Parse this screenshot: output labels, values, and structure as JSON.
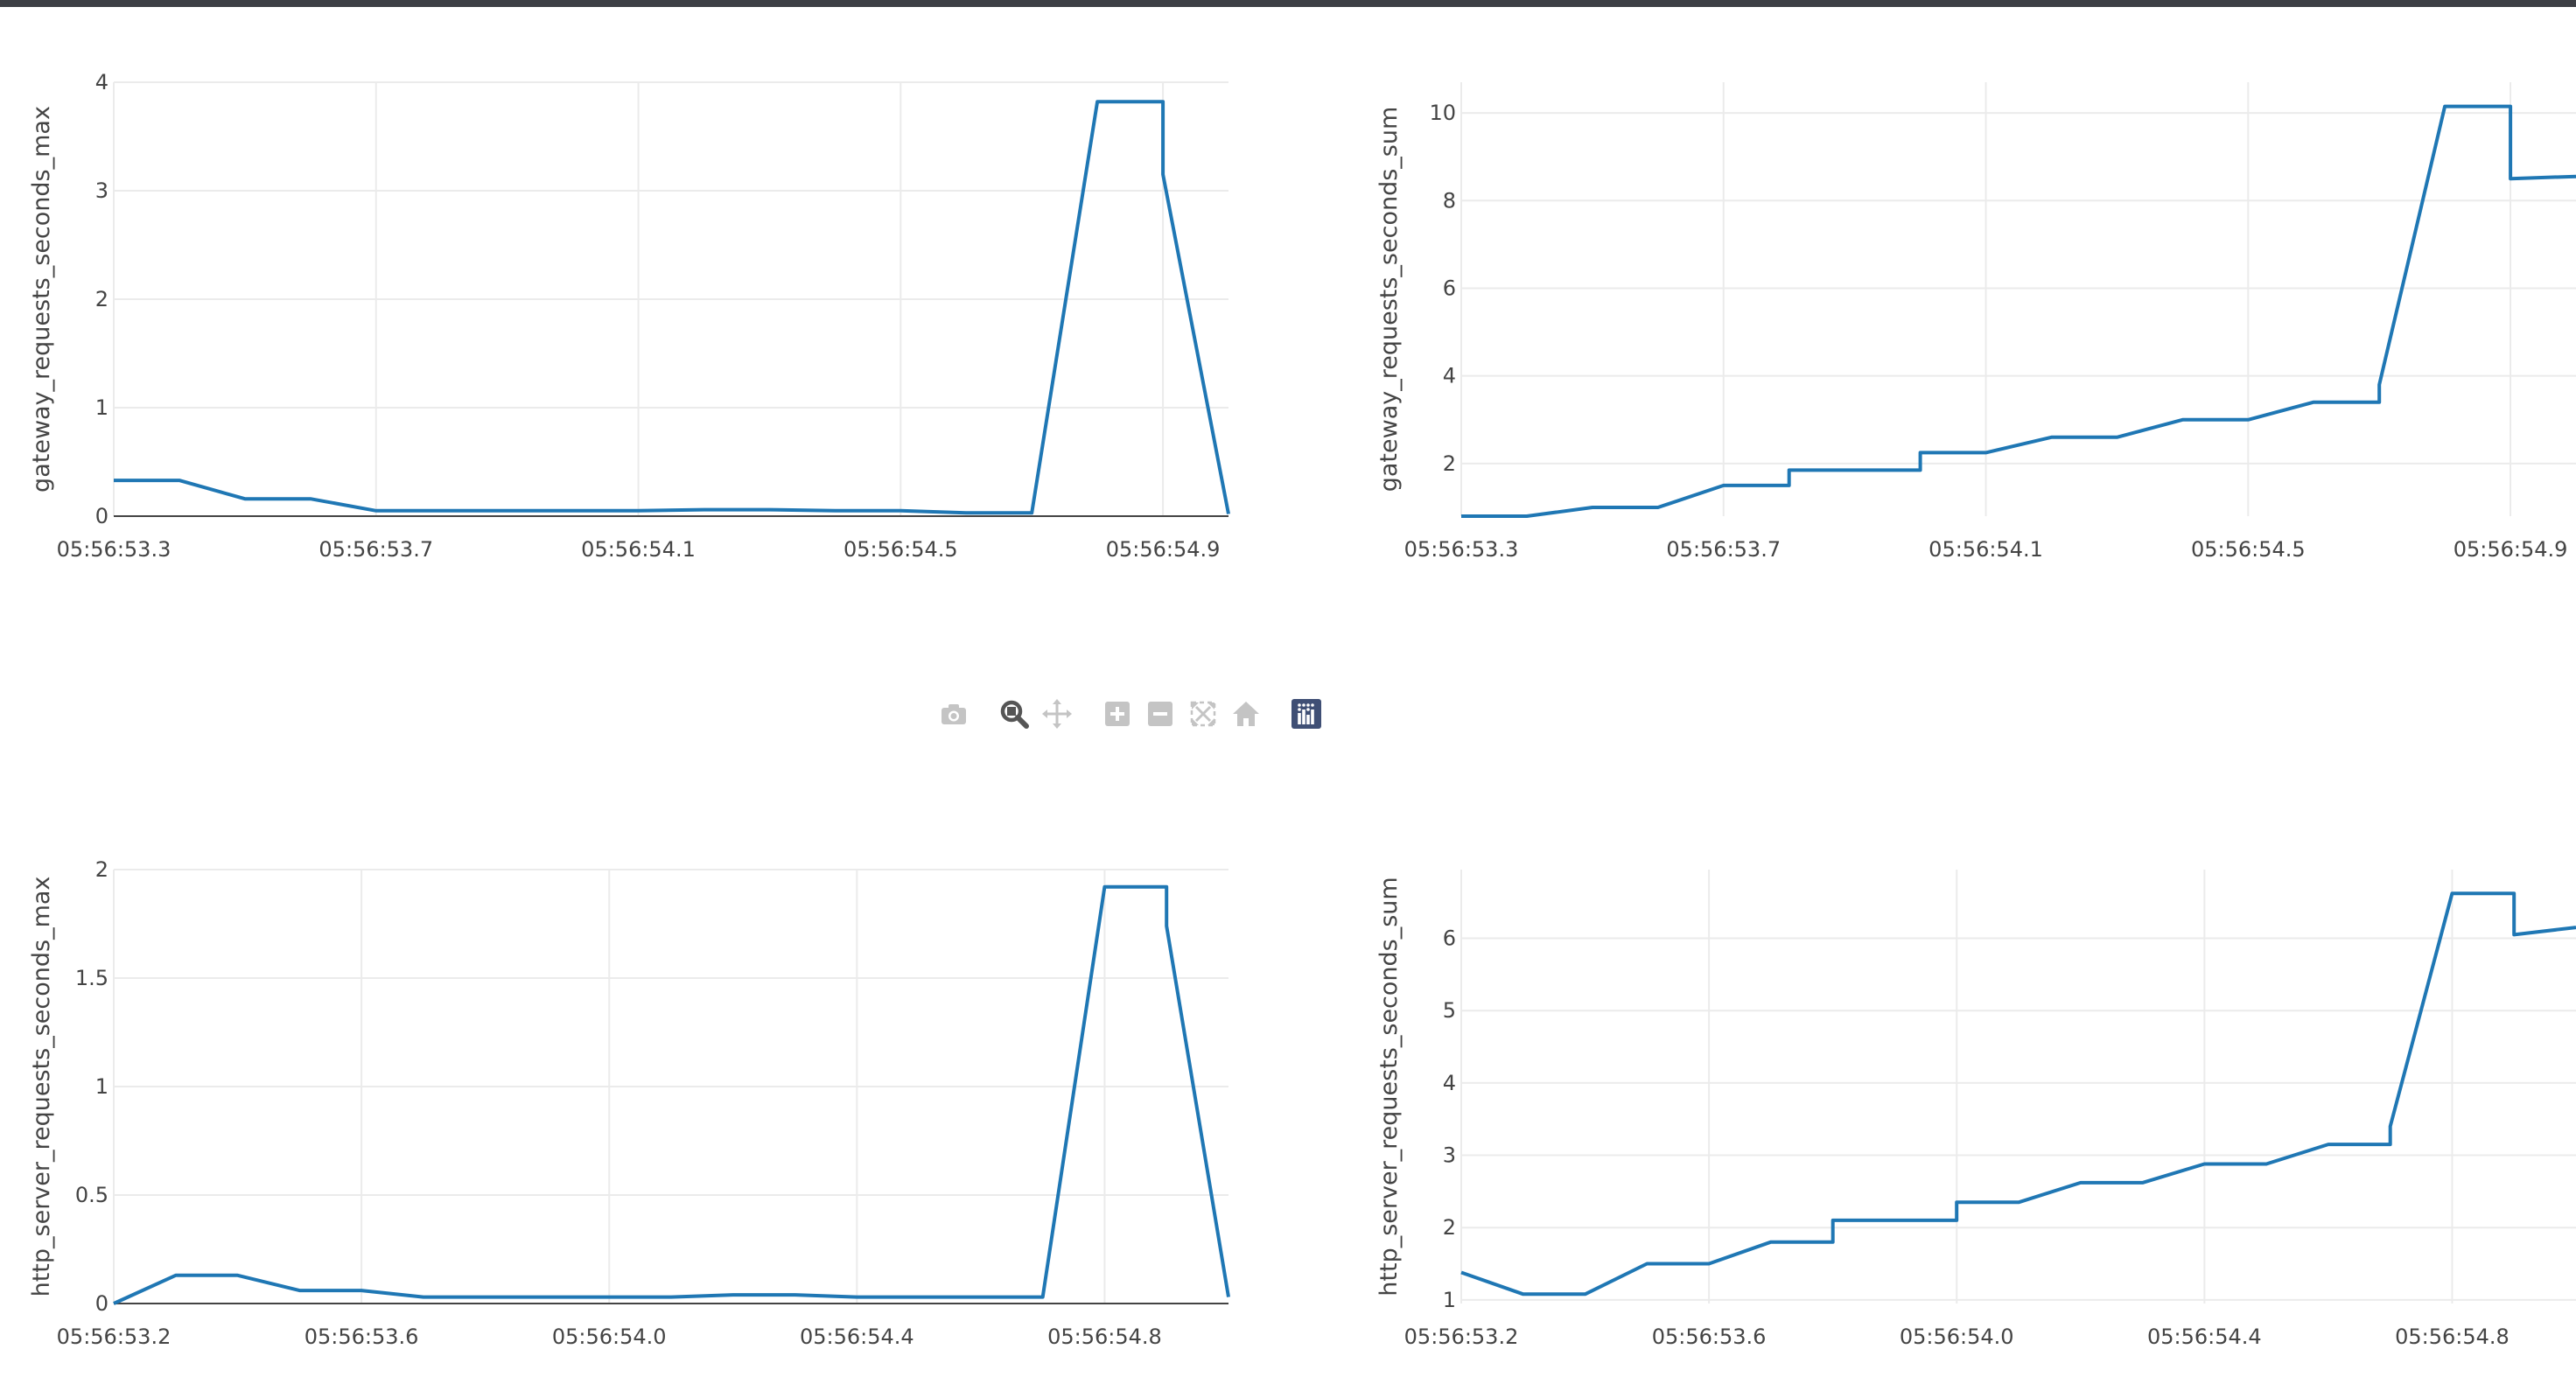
{
  "modebar": {
    "buttons": [
      {
        "name": "camera-icon",
        "title": "Download plot as a png"
      },
      {
        "name": "zoom-icon",
        "title": "Zoom",
        "active": true
      },
      {
        "name": "pan-icon",
        "title": "Pan"
      },
      {
        "name": "zoom-in-icon",
        "title": "Zoom in"
      },
      {
        "name": "zoom-out-icon",
        "title": "Zoom out"
      },
      {
        "name": "autoscale-icon",
        "title": "Autoscale"
      },
      {
        "name": "reset-axes-icon",
        "title": "Reset axes"
      },
      {
        "name": "plotly-logo-icon",
        "title": "Produced with Plotly"
      }
    ]
  },
  "colors": {
    "trace": "#1f77b4",
    "grid": "#ebebeb",
    "text": "#444444",
    "modebar_icon": "#c4c4c4",
    "modebar_active": "#555555",
    "logo_bg": "#3f4f75"
  },
  "chart_data": [
    {
      "type": "line",
      "ylabel": "gateway_requests_seconds_max",
      "xlabel": "",
      "title": "",
      "xticks": [
        "05:56:53.3",
        "05:56:53.7",
        "05:56:54.1",
        "05:56:54.5",
        "05:56:54.9"
      ],
      "xtick_values": [
        53.3,
        53.7,
        54.1,
        54.5,
        54.9
      ],
      "xlim": [
        53.3,
        55.0
      ],
      "yticks": [
        "0",
        "1",
        "2",
        "3",
        "4"
      ],
      "ytick_values": [
        0,
        1,
        2,
        3,
        4
      ],
      "ylim": [
        0,
        4
      ],
      "grid": true,
      "x": [
        53.3,
        53.4,
        53.5,
        53.6,
        53.7,
        53.8,
        54.0,
        54.1,
        54.2,
        54.3,
        54.4,
        54.5,
        54.6,
        54.7,
        54.8,
        54.9,
        54.9,
        55.0
      ],
      "y": [
        0.33,
        0.33,
        0.16,
        0.16,
        0.05,
        0.05,
        0.05,
        0.05,
        0.06,
        0.06,
        0.05,
        0.05,
        0.03,
        0.03,
        3.82,
        3.82,
        3.15,
        0.02
      ]
    },
    {
      "type": "line",
      "ylabel": "gateway_requests_seconds_sum",
      "xlabel": "",
      "title": "",
      "xticks": [
        "05:56:53.3",
        "05:56:53.7",
        "05:56:54.1",
        "05:56:54.5",
        "05:56:54.9"
      ],
      "xtick_values": [
        53.3,
        53.7,
        54.1,
        54.5,
        54.9
      ],
      "xlim": [
        53.3,
        55.0
      ],
      "yticks": [
        "2",
        "4",
        "6",
        "8",
        "10"
      ],
      "ytick_values": [
        2,
        4,
        6,
        8,
        10
      ],
      "ylim": [
        0.8,
        10.7
      ],
      "grid": true,
      "x": [
        53.3,
        53.4,
        53.5,
        53.6,
        53.7,
        53.8,
        53.8,
        54.0,
        54.0,
        54.1,
        54.2,
        54.3,
        54.4,
        54.5,
        54.6,
        54.7,
        54.7,
        54.8,
        54.9,
        54.9,
        55.0
      ],
      "y": [
        0.8,
        0.8,
        1.0,
        1.0,
        1.5,
        1.5,
        1.85,
        1.85,
        2.25,
        2.25,
        2.6,
        2.6,
        3.0,
        3.0,
        3.4,
        3.4,
        3.8,
        10.15,
        10.15,
        8.5,
        8.55
      ]
    },
    {
      "type": "line",
      "ylabel": "http_server_requests_seconds_max",
      "xlabel": "",
      "title": "",
      "xticks": [
        "05:56:53.2",
        "05:56:53.6",
        "05:56:54.0",
        "05:56:54.4",
        "05:56:54.8"
      ],
      "xtick_values": [
        53.2,
        53.6,
        54.0,
        54.4,
        54.8
      ],
      "xlim": [
        53.2,
        55.0
      ],
      "yticks": [
        "0",
        "0.5",
        "1",
        "1.5",
        "2"
      ],
      "ytick_values": [
        0,
        0.5,
        1,
        1.5,
        2
      ],
      "ylim": [
        0,
        2
      ],
      "grid": true,
      "x": [
        53.2,
        53.3,
        53.4,
        53.5,
        53.6,
        53.7,
        53.8,
        54.0,
        54.1,
        54.2,
        54.3,
        54.4,
        54.5,
        54.6,
        54.7,
        54.8,
        54.9,
        54.9,
        55.0
      ],
      "y": [
        0.0,
        0.13,
        0.13,
        0.06,
        0.06,
        0.03,
        0.03,
        0.03,
        0.03,
        0.04,
        0.04,
        0.03,
        0.03,
        0.03,
        0.03,
        1.92,
        1.92,
        1.74,
        0.03
      ]
    },
    {
      "type": "line",
      "ylabel": "http_server_requests_seconds_sum",
      "xlabel": "",
      "title": "",
      "xticks": [
        "05:56:53.2",
        "05:56:53.6",
        "05:56:54.0",
        "05:56:54.4",
        "05:56:54.8"
      ],
      "xtick_values": [
        53.2,
        53.6,
        54.0,
        54.4,
        54.8
      ],
      "xlim": [
        53.2,
        55.0
      ],
      "yticks": [
        "1",
        "2",
        "3",
        "4",
        "5",
        "6"
      ],
      "ytick_values": [
        1,
        2,
        3,
        4,
        5,
        6
      ],
      "ylim": [
        0.95,
        6.95
      ],
      "grid": true,
      "x": [
        53.2,
        53.3,
        53.4,
        53.5,
        53.6,
        53.7,
        53.8,
        53.8,
        54.0,
        54.0,
        54.1,
        54.2,
        54.3,
        54.4,
        54.5,
        54.6,
        54.7,
        54.7,
        54.8,
        54.9,
        54.9,
        55.0
      ],
      "y": [
        1.38,
        1.08,
        1.08,
        1.5,
        1.5,
        1.8,
        1.8,
        2.1,
        2.1,
        2.35,
        2.35,
        2.62,
        2.62,
        2.88,
        2.88,
        3.15,
        3.15,
        3.4,
        6.62,
        6.62,
        6.05,
        6.15
      ]
    }
  ]
}
